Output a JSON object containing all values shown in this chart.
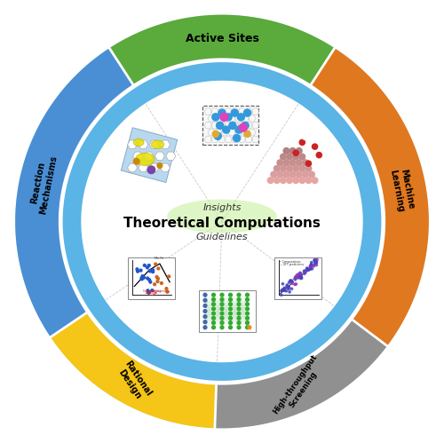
{
  "title": "Theoretical Computations",
  "subtitle_top": "Insights",
  "subtitle_bottom": "Guidelines",
  "background_color": "#ffffff",
  "title_fontsize": 11,
  "subtitle_fontsize": 8,
  "segments": [
    {
      "label": "Active Sites",
      "color": "#5aaa3c",
      "t1": 57,
      "t2": 123,
      "la": 90,
      "lr": 0.865,
      "lrot": 0,
      "fs": 9,
      "bold": true
    },
    {
      "label": "Reaction\nMechanisms",
      "color": "#4a8fd4",
      "t1": 123,
      "t2": 214,
      "la": 168,
      "lr": 0.865,
      "lrot": 79,
      "fs": 7,
      "bold": true
    },
    {
      "label": "Rational\nDesign",
      "color": "#f5c518",
      "t1": 214,
      "t2": 268,
      "la": 241,
      "lr": 0.865,
      "lrot": -56,
      "fs": 7,
      "bold": true
    },
    {
      "label": "High-throughput\nScreening",
      "color": "#909090",
      "t1": 268,
      "t2": 323,
      "la": 295,
      "lr": 0.865,
      "lrot": 55,
      "fs": 6,
      "bold": true
    },
    {
      "label": "Machine\nLearning",
      "color": "#e07820",
      "t1": 323,
      "t2": 417,
      "la": 10,
      "lr": 0.865,
      "lrot": -79,
      "fs": 7,
      "bold": true
    }
  ],
  "outer_r": 0.98,
  "seg_outer_r": 0.98,
  "seg_inner_r": 0.775,
  "blue_ring_outer": 0.755,
  "blue_ring_inner": 0.665,
  "blue_ring_color": "#5ab4e5",
  "bg_ring_color": "#cce8f5",
  "divider_angles": [
    57,
    123,
    214,
    268,
    323
  ],
  "center_green_color": "#c8f0a0"
}
